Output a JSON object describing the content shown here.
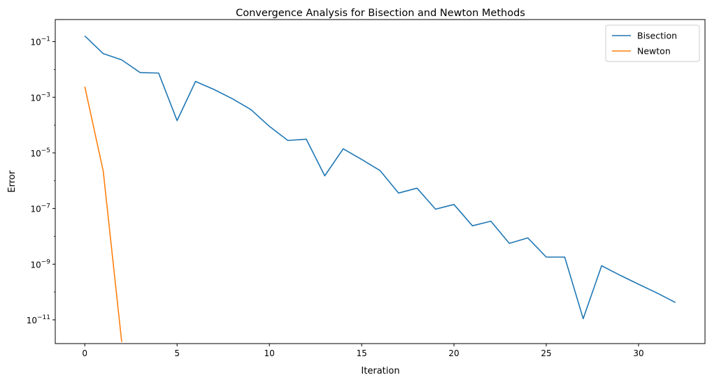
{
  "chart_data": {
    "type": "line",
    "title": "Convergence Analysis for Bisection and Newton Methods",
    "xlabel": "Iteration",
    "ylabel": "Error",
    "yscale": "log",
    "xlim": [
      -1.6,
      33.6
    ],
    "ylim": [
      1.4e-12,
      0.62
    ],
    "xticks": [
      0,
      5,
      10,
      15,
      20,
      25,
      30
    ],
    "xtick_labels": [
      "0",
      "5",
      "10",
      "15",
      "20",
      "25",
      "30"
    ],
    "ytick_exponents": [
      -1,
      -3,
      -5,
      -7,
      -9,
      -11
    ],
    "ytick_base": "10",
    "grid": false,
    "legend_position": "top-right",
    "series": [
      {
        "name": "Bisection",
        "color": "#1f77b4",
        "x": [
          0,
          1,
          2,
          3,
          4,
          5,
          6,
          7,
          8,
          9,
          10,
          11,
          12,
          13,
          14,
          15,
          16,
          17,
          18,
          19,
          20,
          21,
          22,
          23,
          24,
          25,
          26,
          27,
          28,
          29,
          30,
          31,
          32
        ],
        "values": [
          0.16,
          0.037,
          0.022,
          0.0077,
          0.0074,
          0.000145,
          0.0037,
          0.0019,
          0.00088,
          0.00036,
          9e-05,
          2.8e-05,
          3.1e-05,
          1.5e-06,
          1.4e-05,
          5.8e-06,
          2.3e-06,
          3.6e-07,
          5.4e-07,
          9.5e-08,
          1.4e-07,
          2.4e-08,
          3.5e-08,
          5.6e-09,
          8.8e-09,
          1.8e-09,
          1.8e-09,
          1.1e-11,
          8.8e-10,
          4e-10,
          1.9e-10,
          9.2e-11,
          4.2e-11
        ]
      },
      {
        "name": "Newton",
        "color": "#ff7f0e",
        "x": [
          0,
          1,
          2
        ],
        "values": [
          0.0024,
          2.2e-06,
          1.6e-12
        ]
      }
    ]
  }
}
